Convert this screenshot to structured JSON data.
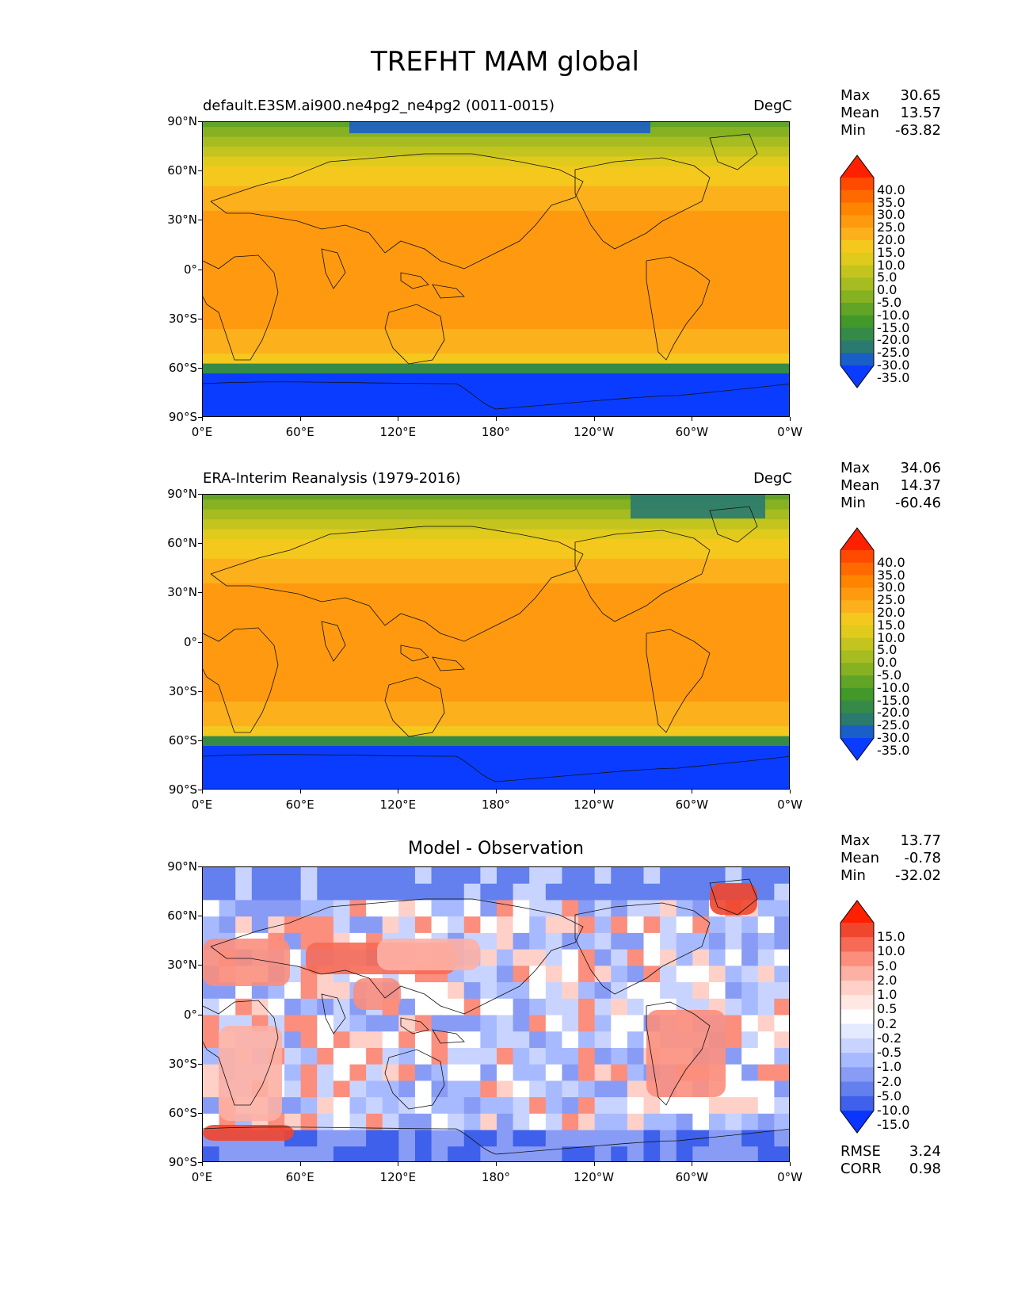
{
  "title": "TREFHT MAM global",
  "lat_ticks": [
    "90°N",
    "60°N",
    "30°N",
    "0°",
    "30°S",
    "60°S",
    "90°S"
  ],
  "lon_ticks": [
    "0°E",
    "60°E",
    "120°E",
    "180°",
    "120°W",
    "60°W",
    "0°W"
  ],
  "panels": [
    {
      "left_title": "default.E3SM.ai900.ne4pg2_ne4pg2 (0011-0015)",
      "units": "DegC",
      "center_title": "",
      "stats": [
        {
          "label": "Max",
          "value": "30.65"
        },
        {
          "label": "Mean",
          "value": "13.57"
        },
        {
          "label": "Min",
          "value": "-63.82"
        }
      ],
      "colorbar": {
        "labels": [
          "40.0",
          "35.0",
          "30.0",
          "25.0",
          "20.0",
          "15.0",
          "10.0",
          "5.0",
          "0.0",
          "-5.0",
          "-10.0",
          "-15.0",
          "-20.0",
          "-25.0",
          "-30.0",
          "-35.0"
        ],
        "colors": [
          "#ff2000",
          "#ff4a00",
          "#ff6a00",
          "#ff8400",
          "#ff9a10",
          "#fbb01c",
          "#f5c81e",
          "#e0ca1c",
          "#c4c41e",
          "#a6bc20",
          "#86b222",
          "#62a426",
          "#429828",
          "#358a48",
          "#2a7a70",
          "#1a5ec8",
          "#0a3cff"
        ]
      },
      "bottom_stats": []
    },
    {
      "left_title": "ERA-Interim Reanalysis (1979-2016)",
      "units": "DegC",
      "center_title": "",
      "stats": [
        {
          "label": "Max",
          "value": "34.06"
        },
        {
          "label": "Mean",
          "value": "14.37"
        },
        {
          "label": "Min",
          "value": "-60.46"
        }
      ],
      "colorbar": {
        "labels": [
          "40.0",
          "35.0",
          "30.0",
          "25.0",
          "20.0",
          "15.0",
          "10.0",
          "5.0",
          "0.0",
          "-5.0",
          "-10.0",
          "-15.0",
          "-20.0",
          "-25.0",
          "-30.0",
          "-35.0"
        ],
        "colors": [
          "#ff2000",
          "#ff4a00",
          "#ff6a00",
          "#ff8400",
          "#ff9a10",
          "#fbb01c",
          "#f5c81e",
          "#e0ca1c",
          "#c4c41e",
          "#a6bc20",
          "#86b222",
          "#62a426",
          "#429828",
          "#358a48",
          "#2a7a70",
          "#1a5ec8",
          "#0a3cff"
        ]
      },
      "bottom_stats": []
    },
    {
      "left_title": "",
      "units": "",
      "center_title": "Model - Observation",
      "stats": [
        {
          "label": "Max",
          "value": "13.77"
        },
        {
          "label": "Mean",
          "value": "-0.78"
        },
        {
          "label": "Min",
          "value": "-32.02"
        }
      ],
      "colorbar": {
        "labels": [
          "15.0",
          "10.0",
          "5.0",
          "2.0",
          "1.0",
          "0.5",
          "0.2",
          "-0.2",
          "-0.5",
          "-1.0",
          "-2.0",
          "-5.0",
          "-10.0",
          "-15.0"
        ],
        "colors": [
          "#ff2000",
          "#f0462e",
          "#f76a55",
          "#fb8e7d",
          "#fdb0a4",
          "#fed0c8",
          "#ffe8e4",
          "#ffffff",
          "#e4eaff",
          "#c8d4ff",
          "#a8baff",
          "#889cf6",
          "#6480ee",
          "#3e60ea",
          "#0a34ff"
        ]
      },
      "bottom_stats": [
        {
          "label": "RMSE",
          "value": "3.24"
        },
        {
          "label": "CORR",
          "value": "0.98"
        }
      ]
    }
  ]
}
